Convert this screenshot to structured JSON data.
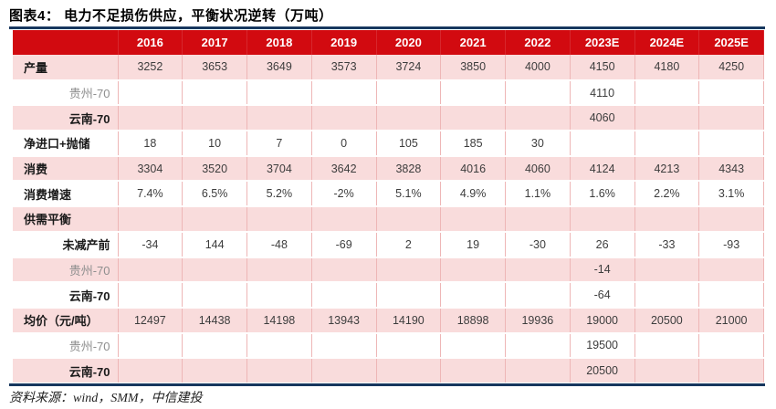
{
  "title": "图表4：  电力不足损伤供应，平衡状况逆转（万吨）",
  "footer": "资料来源：wind，SMM，中信建投",
  "colors": {
    "header_red": "#d20a10",
    "row_pink": "#f9dcdc",
    "gridline_pink": "#eeb6b6",
    "rule_navy": "#17375e",
    "header_text": "#ffffff",
    "value_text": "#3d3d3d",
    "sub_label_gray": "#8e8e8e"
  },
  "chart_data": {
    "type": "table",
    "title": "电力不足损伤供应，平衡状况逆转（万吨）",
    "figure_label": "图表4",
    "unit": "万吨",
    "columns": [
      "2016",
      "2017",
      "2018",
      "2019",
      "2020",
      "2021",
      "2022",
      "2023E",
      "2024E",
      "2025E"
    ],
    "rows": [
      {
        "label": "产量",
        "style": "section",
        "values": [
          "3252",
          "3653",
          "3649",
          "3573",
          "3724",
          "3850",
          "4000",
          "4150",
          "4180",
          "4250"
        ]
      },
      {
        "label": "贵州-70",
        "style": "sub-gray",
        "values": [
          "",
          "",
          "",
          "",
          "",
          "",
          "",
          "4110",
          "",
          ""
        ]
      },
      {
        "label": "云南-70",
        "style": "sub-bold",
        "values": [
          "",
          "",
          "",
          "",
          "",
          "",
          "",
          "4060",
          "",
          ""
        ]
      },
      {
        "label": "净进口+抛储",
        "style": "section",
        "values": [
          "18",
          "10",
          "7",
          "0",
          "105",
          "185",
          "30",
          "",
          "",
          ""
        ]
      },
      {
        "label": "消费",
        "style": "section",
        "values": [
          "3304",
          "3520",
          "3704",
          "3642",
          "3828",
          "4016",
          "4060",
          "4124",
          "4213",
          "4343"
        ]
      },
      {
        "label": "消费增速",
        "style": "section",
        "values": [
          "7.4%",
          "6.5%",
          "5.2%",
          "-2%",
          "5.1%",
          "4.9%",
          "1.1%",
          "1.6%",
          "2.2%",
          "3.1%"
        ]
      },
      {
        "label": "供需平衡",
        "style": "section",
        "values": [
          "",
          "",
          "",
          "",
          "",
          "",
          "",
          "",
          "",
          ""
        ]
      },
      {
        "label": "未减产前",
        "style": "sub-bold",
        "values": [
          "-34",
          "144",
          "-48",
          "-69",
          "2",
          "19",
          "-30",
          "26",
          "-33",
          "-93"
        ]
      },
      {
        "label": "贵州-70",
        "style": "sub-gray",
        "values": [
          "",
          "",
          "",
          "",
          "",
          "",
          "",
          "-14",
          "",
          ""
        ]
      },
      {
        "label": "云南-70",
        "style": "sub-bold",
        "values": [
          "",
          "",
          "",
          "",
          "",
          "",
          "",
          "-64",
          "",
          ""
        ]
      },
      {
        "label": "均价（元/吨）",
        "style": "section",
        "values": [
          "12497",
          "14438",
          "14198",
          "13943",
          "14190",
          "18898",
          "19936",
          "19000",
          "20500",
          "21000"
        ]
      },
      {
        "label": "贵州-70",
        "style": "sub-gray",
        "values": [
          "",
          "",
          "",
          "",
          "",
          "",
          "",
          "19500",
          "",
          ""
        ]
      },
      {
        "label": "云南-70",
        "style": "sub-bold",
        "values": [
          "",
          "",
          "",
          "",
          "",
          "",
          "",
          "20500",
          "",
          ""
        ]
      }
    ],
    "source": "wind，SMM，中信建投",
    "layout": {
      "alternating_rows": "pink/white starting pink",
      "header": "red band with white year labels"
    }
  }
}
